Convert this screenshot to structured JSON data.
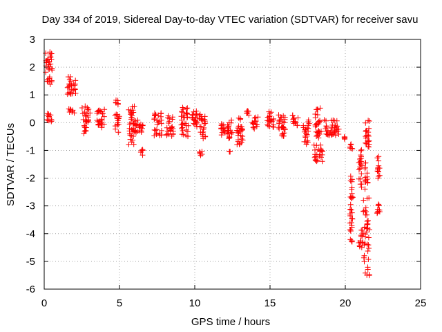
{
  "chart_data": {
    "type": "scatter",
    "title": "Day 334 of 2019, Sidereal Day-to-day VTEC variation (SDTVAR) for receiver savu",
    "xlabel": "GPS time / hours",
    "ylabel": "SDTVAR / TECUs",
    "xlim": [
      0,
      25
    ],
    "ylim": [
      -6,
      3
    ],
    "xticks": [
      0,
      5,
      10,
      15,
      20,
      25
    ],
    "yticks": [
      -6,
      -5,
      -4,
      -3,
      -2,
      -1,
      0,
      1,
      2,
      3
    ],
    "grid": true,
    "marker": "+",
    "marker_color": "#ff0000",
    "clusters": [
      {
        "x0": 0.1,
        "x1": 0.55,
        "y0": 1.8,
        "y1": 2.55
      },
      {
        "x0": 0.2,
        "x1": 0.5,
        "y0": 1.3,
        "y1": 1.65
      },
      {
        "x0": 0.1,
        "x1": 0.5,
        "y0": 0.0,
        "y1": 0.35
      },
      {
        "x0": 1.55,
        "x1": 2.1,
        "y0": 1.0,
        "y1": 1.7
      },
      {
        "x0": 1.6,
        "x1": 2.0,
        "y0": 0.35,
        "y1": 0.55
      },
      {
        "x0": 2.5,
        "x1": 3.05,
        "y0": 0.0,
        "y1": 0.6
      },
      {
        "x0": 2.55,
        "x1": 2.8,
        "y0": -0.4,
        "y1": -0.1
      },
      {
        "x0": 3.5,
        "x1": 4.0,
        "y0": -0.3,
        "y1": 0.5
      },
      {
        "x0": 4.7,
        "x1": 5.0,
        "y0": -0.4,
        "y1": 0.3
      },
      {
        "x0": 4.75,
        "x1": 4.95,
        "y0": 0.65,
        "y1": 0.85
      },
      {
        "x0": 5.6,
        "x1": 6.0,
        "y0": -0.8,
        "y1": 0.6
      },
      {
        "x0": 6.0,
        "x1": 6.6,
        "y0": -0.4,
        "y1": 0.1
      },
      {
        "x0": 6.4,
        "x1": 6.55,
        "y0": -1.2,
        "y1": -0.95
      },
      {
        "x0": 7.3,
        "x1": 7.8,
        "y0": -0.5,
        "y1": 0.35
      },
      {
        "x0": 8.1,
        "x1": 8.6,
        "y0": -0.5,
        "y1": 0.25
      },
      {
        "x0": 9.1,
        "x1": 9.6,
        "y0": -0.5,
        "y1": 0.55
      },
      {
        "x0": 9.8,
        "x1": 10.2,
        "y0": -0.2,
        "y1": 0.45
      },
      {
        "x0": 10.3,
        "x1": 10.7,
        "y0": -0.6,
        "y1": 0.3
      },
      {
        "x0": 10.3,
        "x1": 10.5,
        "y0": -1.2,
        "y1": -1.0
      },
      {
        "x0": 11.7,
        "x1": 12.2,
        "y0": -0.5,
        "y1": 0.0
      },
      {
        "x0": 12.2,
        "x1": 12.5,
        "y0": -0.6,
        "y1": 0.1
      },
      {
        "x0": 12.3,
        "x1": 12.35,
        "y0": -1.05,
        "y1": -1.05
      },
      {
        "x0": 12.8,
        "x1": 13.2,
        "y0": -0.8,
        "y1": 0.2
      },
      {
        "x0": 13.4,
        "x1": 13.6,
        "y0": 0.2,
        "y1": 0.45
      },
      {
        "x0": 13.8,
        "x1": 14.2,
        "y0": -0.3,
        "y1": 0.2
      },
      {
        "x0": 14.8,
        "x1": 15.3,
        "y0": -0.2,
        "y1": 0.4
      },
      {
        "x0": 15.5,
        "x1": 16.0,
        "y0": -0.5,
        "y1": 0.3
      },
      {
        "x0": 16.5,
        "x1": 16.9,
        "y0": -0.1,
        "y1": 0.35
      },
      {
        "x0": 17.2,
        "x1": 17.6,
        "y0": -0.8,
        "y1": 0.1
      },
      {
        "x0": 18.0,
        "x1": 18.4,
        "y0": -0.6,
        "y1": 0.55
      },
      {
        "x0": 17.9,
        "x1": 18.5,
        "y0": -1.4,
        "y1": -0.8
      },
      {
        "x0": 18.6,
        "x1": 19.6,
        "y0": -0.5,
        "y1": 0.1
      },
      {
        "x0": 19.9,
        "x1": 20.0,
        "y0": -0.6,
        "y1": -0.5
      },
      {
        "x0": 20.3,
        "x1": 20.5,
        "y0": -0.95,
        "y1": -0.75
      },
      {
        "x0": 20.3,
        "x1": 20.5,
        "y0": -4.5,
        "y1": -1.9
      },
      {
        "x0": 20.9,
        "x1": 21.1,
        "y0": -2.4,
        "y1": -0.9
      },
      {
        "x0": 20.9,
        "x1": 21.2,
        "y0": -4.5,
        "y1": -3.8
      },
      {
        "x0": 21.2,
        "x1": 21.6,
        "y0": -5.6,
        "y1": -2.7
      },
      {
        "x0": 21.3,
        "x1": 21.6,
        "y0": -0.9,
        "y1": 0.1
      },
      {
        "x0": 21.3,
        "x1": 21.5,
        "y0": -2.4,
        "y1": -1.4
      },
      {
        "x0": 22.1,
        "x1": 22.3,
        "y0": -2.1,
        "y1": -1.2
      },
      {
        "x0": 22.1,
        "x1": 22.3,
        "y0": -3.3,
        "y1": -2.9
      }
    ]
  }
}
